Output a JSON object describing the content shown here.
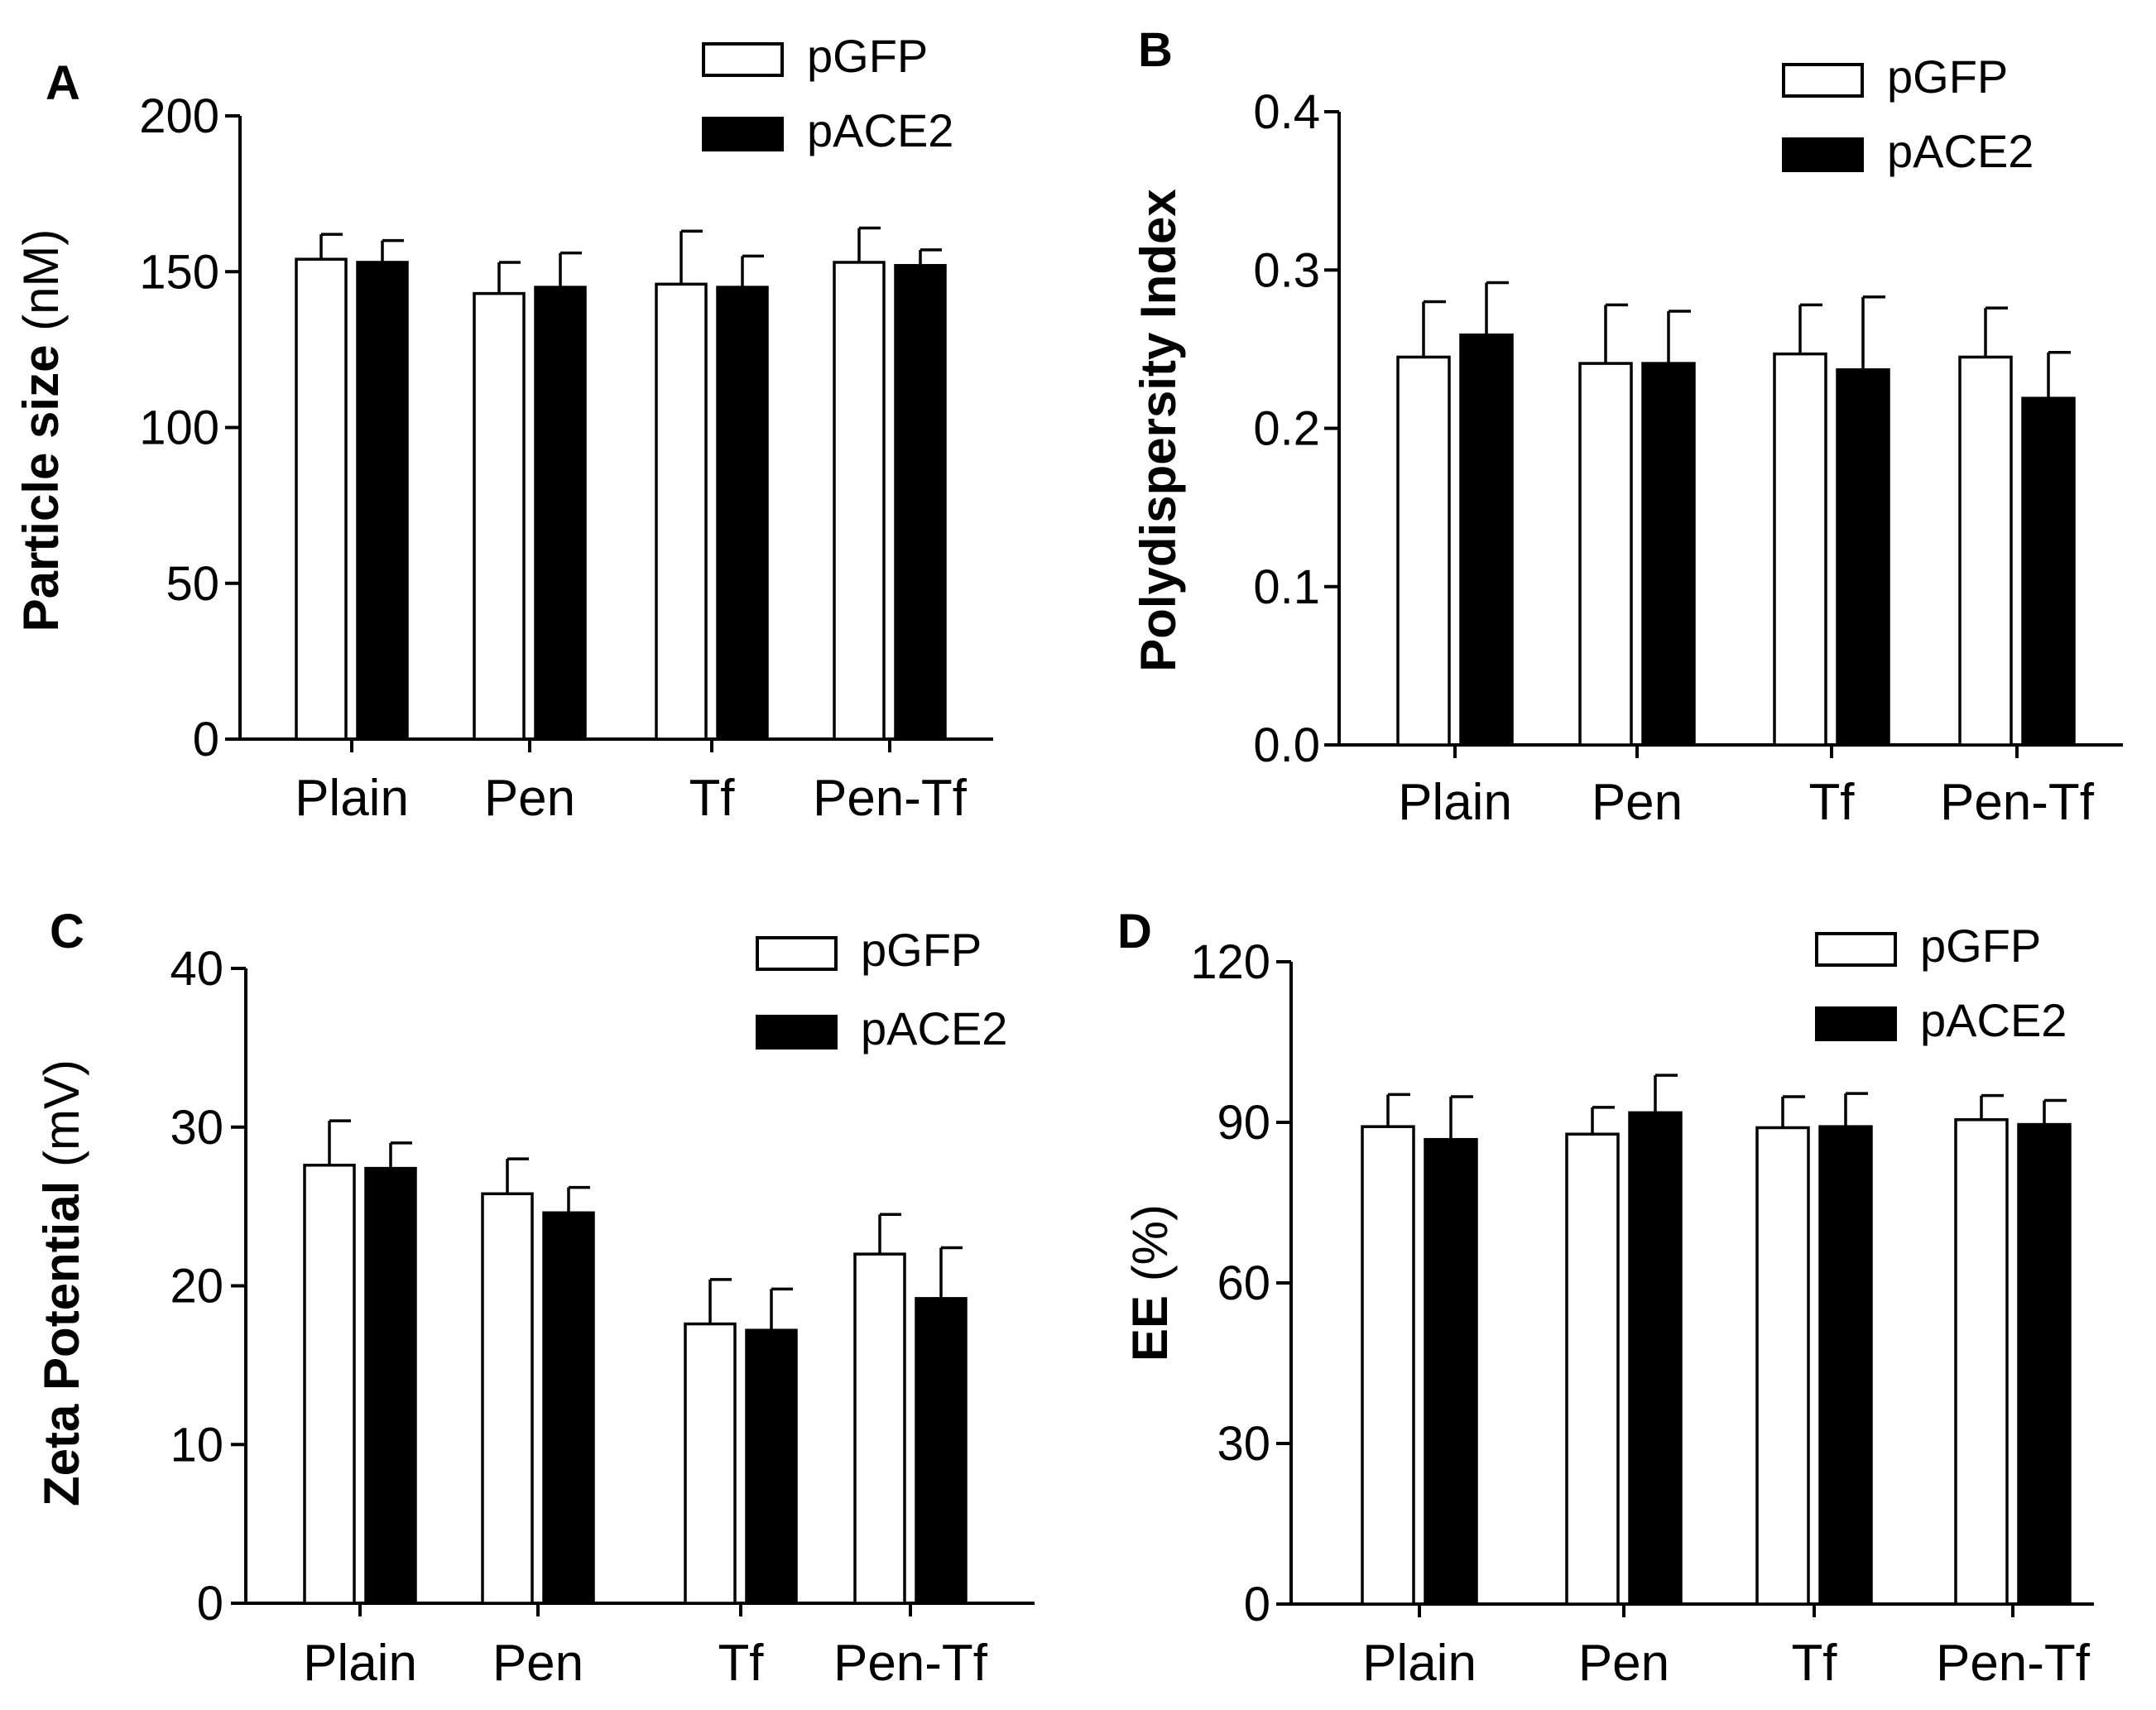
{
  "figure": {
    "chart_data": [
      {
        "type": "bar",
        "panel": "A",
        "ylabel": {
          "bold": "Particle size",
          "unit": " (nM)"
        },
        "ylim": [
          0,
          200
        ],
        "yticks": [
          0,
          50,
          100,
          150,
          200
        ],
        "categories": [
          "Plain",
          "Pen",
          "Tf",
          "Pen-Tf"
        ],
        "series": [
          {
            "name": "pGFP",
            "fill": "#ffffff",
            "values": [
              154,
              143,
              146,
              153
            ],
            "errors": [
              8,
              10,
              17,
              11
            ]
          },
          {
            "name": "pACE2",
            "fill": "#000000",
            "values": [
              153,
              145,
              145,
              152
            ],
            "errors": [
              7,
              11,
              10,
              5
            ]
          }
        ]
      },
      {
        "type": "bar",
        "panel": "B",
        "ylabel": {
          "bold": "Polydispersity Index",
          "unit": ""
        },
        "ylim": [
          0,
          0.4
        ],
        "yticks": [
          "0.0",
          "0.1",
          "0.2",
          "0.3",
          "0.4"
        ],
        "categories": [
          "Plain",
          "Pen",
          "Tf",
          "Pen-Tf"
        ],
        "series": [
          {
            "name": "pGFP",
            "fill": "#ffffff",
            "values": [
              0.245,
              0.241,
              0.247,
              0.245
            ],
            "errors": [
              0.035,
              0.037,
              0.031,
              0.031
            ]
          },
          {
            "name": "pACE2",
            "fill": "#000000",
            "values": [
              0.259,
              0.241,
              0.237,
              0.219
            ],
            "errors": [
              0.033,
              0.033,
              0.046,
              0.029
            ]
          }
        ]
      },
      {
        "type": "bar",
        "panel": "C",
        "ylabel": {
          "bold": "Zeta Potential",
          "unit": " (mV)"
        },
        "ylim": [
          0,
          40
        ],
        "yticks": [
          0,
          10,
          20,
          30,
          40
        ],
        "categories": [
          "Plain",
          "Pen",
          "Tf",
          "Pen-Tf"
        ],
        "series": [
          {
            "name": "pGFP",
            "fill": "#ffffff",
            "values": [
              27.6,
              25.8,
              17.6,
              22.0
            ],
            "errors": [
              2.8,
              2.2,
              2.8,
              2.5
            ]
          },
          {
            "name": "pACE2",
            "fill": "#000000",
            "values": [
              27.4,
              24.6,
              17.2,
              19.2
            ],
            "errors": [
              1.6,
              1.6,
              2.6,
              3.2
            ]
          }
        ]
      },
      {
        "type": "bar",
        "panel": "D",
        "ylabel": {
          "bold": "EE",
          "unit": " (%)"
        },
        "ylim": [
          0,
          120
        ],
        "yticks": [
          0,
          30,
          60,
          90,
          120
        ],
        "categories": [
          "Plain",
          "Pen",
          "Tf",
          "Pen-Tf"
        ],
        "series": [
          {
            "name": "pGFP",
            "fill": "#ffffff",
            "values": [
              89.2,
              87.8,
              89.0,
              90.5
            ],
            "errors": [
              6.0,
              5.0,
              5.8,
              4.5
            ]
          },
          {
            "name": "pACE2",
            "fill": "#000000",
            "values": [
              86.8,
              91.8,
              89.2,
              89.6
            ],
            "errors": [
              8.0,
              7.0,
              6.2,
              4.5
            ]
          }
        ]
      }
    ]
  }
}
